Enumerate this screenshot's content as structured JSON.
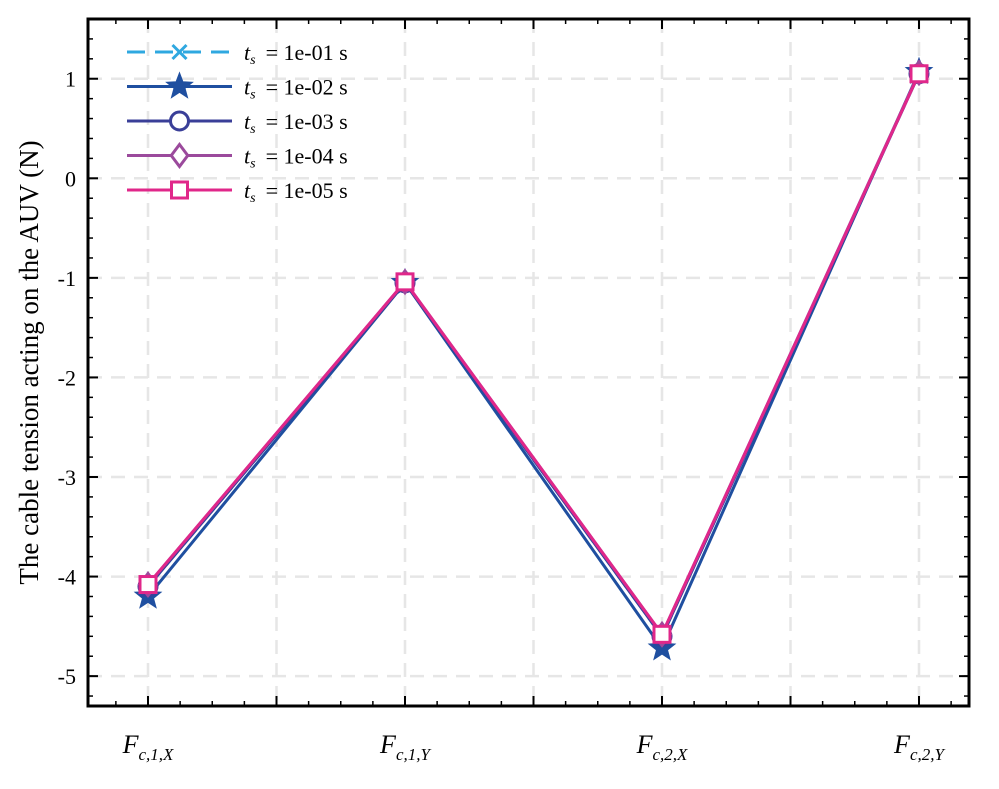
{
  "chart_data": {
    "type": "line",
    "title": "",
    "xlabel": "",
    "ylabel": "The cable tension acting on the AUV (N)",
    "categories": [
      {
        "main": "F",
        "sub": "c,1,X"
      },
      {
        "main": "F",
        "sub": "c,1,Y"
      },
      {
        "main": "F",
        "sub": "c,2,X"
      },
      {
        "main": "F",
        "sub": "c,2,Y"
      }
    ],
    "ylim": [
      -5.3,
      1.6
    ],
    "yticks": [
      1,
      0,
      -1,
      -2,
      -3,
      -4,
      -5
    ],
    "ytick_labels": [
      "1",
      "0",
      "-1",
      "-2",
      "-3",
      "-4",
      "-5"
    ],
    "grid": true,
    "legend_position": "top-left",
    "series": [
      {
        "name": "t_s = 1e-01 s",
        "legend_prefix": "t",
        "legend_sub": "s",
        "legend_rest": "= 1e-01 s",
        "color": "#2fa8e0",
        "linestyle": "dashed",
        "marker": "x",
        "values": [
          -4.1,
          -1.05,
          -4.6,
          1.05
        ]
      },
      {
        "name": "t_s = 1e-02 s",
        "legend_prefix": "t",
        "legend_sub": "s",
        "legend_rest": "= 1e-02 s",
        "color": "#1f4fa0",
        "linestyle": "solid",
        "marker": "star",
        "values": [
          -4.2,
          -1.05,
          -4.72,
          1.07
        ]
      },
      {
        "name": "t_s = 1e-03 s",
        "legend_prefix": "t",
        "legend_sub": "s",
        "legend_rest": "= 1e-03 s",
        "color": "#3a3f98",
        "linestyle": "solid",
        "marker": "circle",
        "values": [
          -4.1,
          -1.05,
          -4.6,
          1.05
        ]
      },
      {
        "name": "t_s = 1e-04 s",
        "legend_prefix": "t",
        "legend_sub": "s",
        "legend_rest": "= 1e-04 s",
        "color": "#9b4a9c",
        "linestyle": "solid",
        "marker": "diamond",
        "values": [
          -4.08,
          -1.04,
          -4.58,
          1.06
        ]
      },
      {
        "name": "t_s = 1e-05 s",
        "legend_prefix": "t",
        "legend_sub": "s",
        "legend_rest": "= 1e-05 s",
        "color": "#e0278a",
        "linestyle": "solid",
        "marker": "square",
        "values": [
          -4.08,
          -1.04,
          -4.58,
          1.05
        ]
      }
    ]
  }
}
